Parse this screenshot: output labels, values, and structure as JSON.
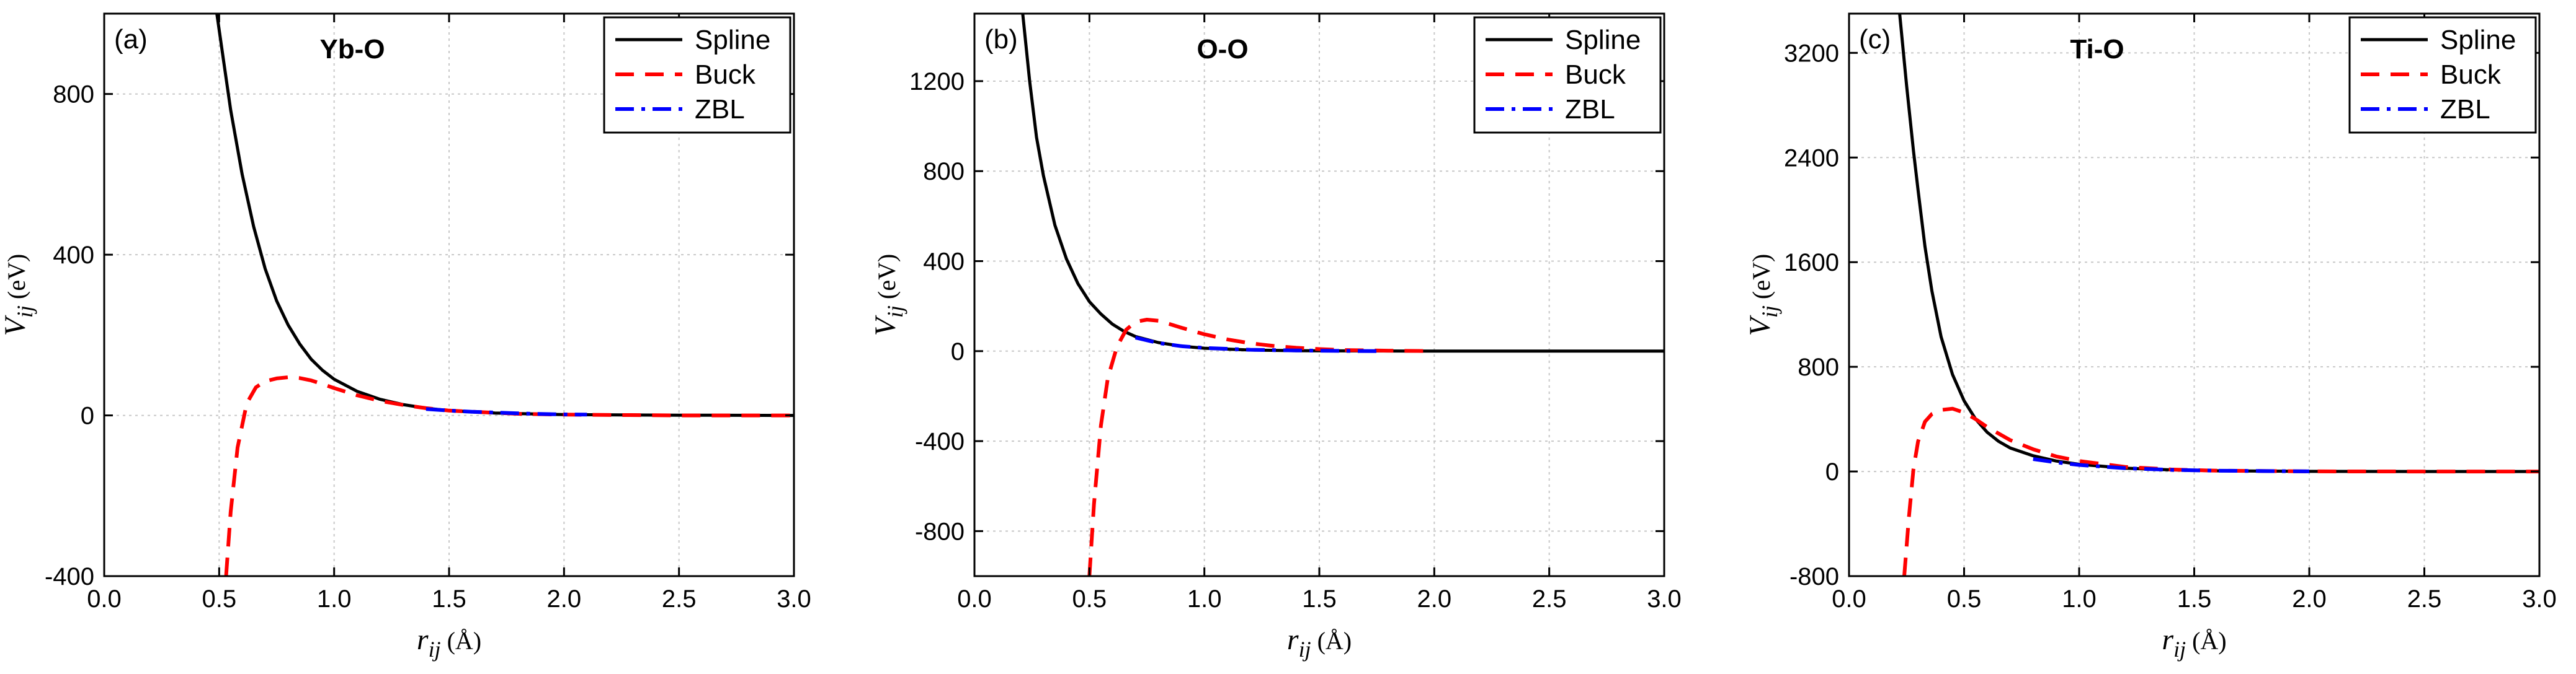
{
  "chart_data": [
    {
      "type": "line",
      "panel_tag": "(a)",
      "title": "Yb-O",
      "xlabel": {
        "main": "r",
        "sub": "ij",
        "unit": " (Å)"
      },
      "ylabel": {
        "main": "V",
        "sub": "ij",
        "unit": " (eV)"
      },
      "xlim": [
        0.0,
        3.0
      ],
      "ylim": [
        -400,
        1000
      ],
      "xticks": [
        0.0,
        0.5,
        1.0,
        1.5,
        2.0,
        2.5,
        3.0
      ],
      "xtick_labels": [
        "0.0",
        "0.5",
        "1.0",
        "1.5",
        "2.0",
        "2.5",
        "3.0"
      ],
      "yticks": [
        -400,
        0,
        400,
        800
      ],
      "ytick_labels": [
        "-400",
        "0",
        "400",
        "800"
      ],
      "grid": true,
      "legend_position": "top-right",
      "series": [
        {
          "name": "Spline",
          "color": "#000000",
          "dash": "solid",
          "x": [
            0.49,
            0.52,
            0.55,
            0.6,
            0.65,
            0.7,
            0.75,
            0.8,
            0.85,
            0.9,
            0.95,
            1.0,
            1.1,
            1.2,
            1.3,
            1.4,
            1.5,
            1.7,
            2.0,
            2.5,
            3.0
          ],
          "y": [
            1000,
            880,
            760,
            600,
            470,
            365,
            285,
            225,
            178,
            140,
            112,
            90,
            60,
            40,
            27,
            18,
            12,
            6,
            2,
            0.5,
            0
          ]
        },
        {
          "name": "Buck",
          "color": "#ff0000",
          "dash": "dashed",
          "x": [
            0.53,
            0.55,
            0.58,
            0.62,
            0.66,
            0.7,
            0.75,
            0.8,
            0.85,
            0.9,
            0.95,
            1.0,
            1.1,
            1.2,
            1.3,
            1.4,
            1.5,
            1.6,
            1.8,
            2.0,
            2.5,
            3.0
          ],
          "y": [
            -400,
            -240,
            -80,
            30,
            70,
            85,
            92,
            95,
            93,
            87,
            78,
            68,
            50,
            36,
            26,
            18,
            12,
            9,
            4,
            2,
            0,
            0
          ]
        },
        {
          "name": "ZBL",
          "color": "#0000ff",
          "dash": "dashdot",
          "x": [
            1.4,
            1.5,
            1.6,
            1.7,
            1.8,
            1.9,
            2.0,
            2.1
          ],
          "y": [
            16,
            12,
            9,
            7,
            5,
            3.5,
            2.5,
            2
          ]
        }
      ]
    },
    {
      "type": "line",
      "panel_tag": "(b)",
      "title": "O-O",
      "xlabel": {
        "main": "r",
        "sub": "ij",
        "unit": " (Å)"
      },
      "ylabel": {
        "main": "V",
        "sub": "ij",
        "unit": " (eV)"
      },
      "xlim": [
        0.0,
        3.0
      ],
      "ylim": [
        -1000,
        1500
      ],
      "xticks": [
        0.0,
        0.5,
        1.0,
        1.5,
        2.0,
        2.5,
        3.0
      ],
      "xtick_labels": [
        "0.0",
        "0.5",
        "1.0",
        "1.5",
        "2.0",
        "2.5",
        "3.0"
      ],
      "yticks": [
        -800,
        -400,
        0,
        400,
        800,
        1200
      ],
      "ytick_labels": [
        "-800",
        "-400",
        "0",
        "400",
        "800",
        "1200"
      ],
      "grid": true,
      "legend_position": "top-right",
      "series": [
        {
          "name": "Spline",
          "color": "#000000",
          "dash": "solid",
          "x": [
            0.21,
            0.24,
            0.27,
            0.3,
            0.35,
            0.4,
            0.45,
            0.5,
            0.55,
            0.6,
            0.65,
            0.7,
            0.8,
            0.9,
            1.0,
            1.2,
            1.4,
            1.6,
            2.0,
            2.5,
            3.0
          ],
          "y": [
            1500,
            1200,
            950,
            780,
            560,
            410,
            300,
            220,
            165,
            120,
            88,
            65,
            38,
            22,
            13,
            5,
            2,
            1,
            0,
            0,
            0
          ]
        },
        {
          "name": "Buck",
          "color": "#ff0000",
          "dash": "dashed",
          "x": [
            0.5,
            0.52,
            0.55,
            0.58,
            0.62,
            0.66,
            0.7,
            0.75,
            0.8,
            0.85,
            0.9,
            1.0,
            1.1,
            1.2,
            1.3,
            1.4,
            1.5,
            1.6,
            1.8,
            2.0
          ],
          "y": [
            -1000,
            -680,
            -330,
            -120,
            20,
            95,
            130,
            140,
            135,
            120,
            104,
            75,
            52,
            35,
            23,
            15,
            9,
            5,
            2,
            0
          ]
        },
        {
          "name": "ZBL",
          "color": "#0000ff",
          "dash": "dashdot",
          "x": [
            0.7,
            0.8,
            0.9,
            1.0,
            1.2,
            1.4,
            1.6,
            1.75
          ],
          "y": [
            60,
            36,
            22,
            14,
            6,
            3,
            1,
            0
          ]
        }
      ]
    },
    {
      "type": "line",
      "panel_tag": "(c)",
      "title": "Ti-O",
      "xlabel": {
        "main": "r",
        "sub": "ij",
        "unit": " (Å)"
      },
      "ylabel": {
        "main": "V",
        "sub": "ij",
        "unit": " (eV)"
      },
      "xlim": [
        0.0,
        3.0
      ],
      "ylim": [
        -800,
        3500
      ],
      "xticks": [
        0.0,
        0.5,
        1.0,
        1.5,
        2.0,
        2.5,
        3.0
      ],
      "xtick_labels": [
        "0.0",
        "0.5",
        "1.0",
        "1.5",
        "2.0",
        "2.5",
        "3.0"
      ],
      "yticks": [
        -800,
        0,
        800,
        1600,
        2400,
        3200
      ],
      "ytick_labels": [
        "-800",
        "0",
        "800",
        "1600",
        "2400",
        "3200"
      ],
      "grid": true,
      "legend_position": "top-right",
      "series": [
        {
          "name": "Spline",
          "color": "#000000",
          "dash": "solid",
          "x": [
            0.22,
            0.25,
            0.28,
            0.3,
            0.33,
            0.36,
            0.4,
            0.45,
            0.5,
            0.55,
            0.6,
            0.65,
            0.7,
            0.8,
            0.9,
            1.0,
            1.2,
            1.4,
            1.6,
            2.0,
            2.5,
            3.0
          ],
          "y": [
            3500,
            2950,
            2450,
            2150,
            1720,
            1380,
            1030,
            740,
            540,
            400,
            300,
            230,
            180,
            120,
            80,
            55,
            25,
            12,
            5,
            1,
            0,
            0
          ]
        },
        {
          "name": "Buck",
          "color": "#ff0000",
          "dash": "dashed",
          "x": [
            0.24,
            0.26,
            0.28,
            0.3,
            0.33,
            0.36,
            0.4,
            0.45,
            0.5,
            0.55,
            0.6,
            0.7,
            0.8,
            0.9,
            1.0,
            1.2,
            1.4,
            1.6,
            2.0,
            2.5,
            3.0
          ],
          "y": [
            -800,
            -350,
            20,
            230,
            380,
            440,
            470,
            480,
            450,
            400,
            340,
            240,
            170,
            115,
            80,
            35,
            15,
            6,
            1,
            0,
            0
          ]
        },
        {
          "name": "ZBL",
          "color": "#0000ff",
          "dash": "dashdot",
          "x": [
            0.8,
            0.9,
            1.0,
            1.2,
            1.4,
            1.6,
            1.8,
            2.0
          ],
          "y": [
            95,
            70,
            50,
            25,
            12,
            6,
            3,
            1
          ]
        }
      ]
    }
  ]
}
